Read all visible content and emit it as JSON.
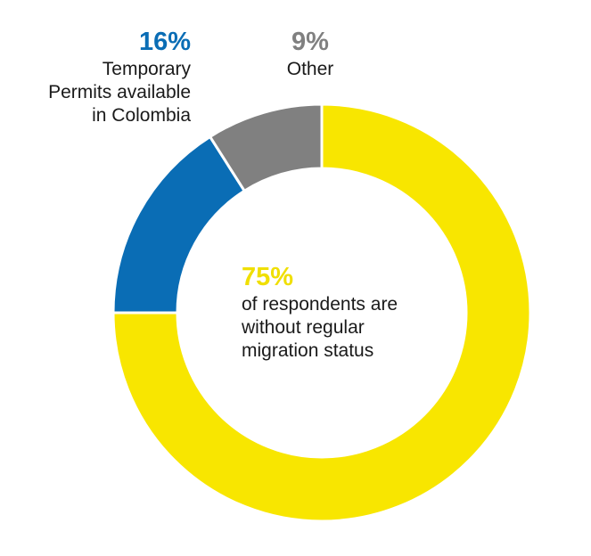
{
  "chart_data": {
    "type": "pie",
    "donut": true,
    "slices": [
      {
        "percent": 75,
        "color": "#f8e600",
        "label_pct": "75%",
        "label_lines": [
          "of respondents are",
          "without regular",
          "migration status"
        ]
      },
      {
        "percent": 16,
        "color": "#0a6db5",
        "label_pct": "16%",
        "label_lines": [
          "Temporary",
          "Permits available",
          "in Colombia"
        ]
      },
      {
        "percent": 9,
        "color": "#808080",
        "label_pct": "9%",
        "label_lines": [
          "Other"
        ]
      }
    ],
    "title": "",
    "legend": "none"
  },
  "colors": {
    "yellow": "#f8e600",
    "blue": "#0a6db5",
    "gray": "#808080"
  }
}
